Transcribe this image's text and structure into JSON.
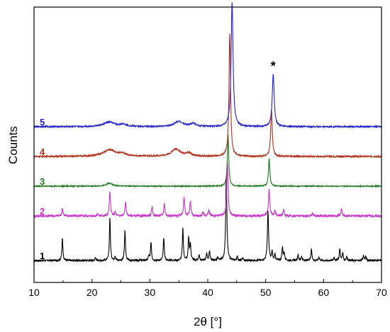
{
  "chart_data": {
    "type": "line",
    "xlabel": "2θ [°]",
    "ylabel": "Counts",
    "xlim": [
      10,
      70
    ],
    "xticks": [
      "10",
      "20",
      "30",
      "40",
      "50",
      "60",
      "70"
    ],
    "grid": false,
    "legend": "inline labels at left of each curve",
    "annotations": [
      {
        "text": "*",
        "x": 44.2
      },
      {
        "text": "*",
        "x": 51.3
      }
    ],
    "series": [
      {
        "name": "1",
        "color": "#000000",
        "baseline": 0.0,
        "noise": 0.12,
        "peaks": [
          {
            "x": 14.9,
            "h": 3.0,
            "w": 0.1
          },
          {
            "x": 20.6,
            "h": 0.4,
            "w": 0.1
          },
          {
            "x": 23.1,
            "h": 5.9,
            "w": 0.1
          },
          {
            "x": 24.0,
            "h": 0.6,
            "w": 0.1
          },
          {
            "x": 25.7,
            "h": 4.0,
            "w": 0.1
          },
          {
            "x": 29.8,
            "h": 0.6,
            "w": 0.1
          },
          {
            "x": 30.2,
            "h": 2.5,
            "w": 0.1
          },
          {
            "x": 32.4,
            "h": 3.1,
            "w": 0.1
          },
          {
            "x": 35.7,
            "h": 4.4,
            "w": 0.1
          },
          {
            "x": 36.7,
            "h": 3.1,
            "w": 0.1
          },
          {
            "x": 37.0,
            "h": 2.2,
            "w": 0.1
          },
          {
            "x": 38.5,
            "h": 0.8,
            "w": 0.1
          },
          {
            "x": 39.8,
            "h": 1.0,
            "w": 0.1
          },
          {
            "x": 40.3,
            "h": 1.3,
            "w": 0.1
          },
          {
            "x": 41.7,
            "h": 0.4,
            "w": 0.1
          },
          {
            "x": 43.2,
            "h": 11.3,
            "w": 0.12
          },
          {
            "x": 45.1,
            "h": 0.5,
            "w": 0.1
          },
          {
            "x": 46.0,
            "h": 0.3,
            "w": 0.1
          },
          {
            "x": 50.4,
            "h": 6.7,
            "w": 0.12
          },
          {
            "x": 51.1,
            "h": 1.2,
            "w": 0.1
          },
          {
            "x": 51.6,
            "h": 0.8,
            "w": 0.1
          },
          {
            "x": 52.9,
            "h": 1.8,
            "w": 0.1
          },
          {
            "x": 53.2,
            "h": 1.0,
            "w": 0.1
          },
          {
            "x": 55.6,
            "h": 0.7,
            "w": 0.1
          },
          {
            "x": 56.2,
            "h": 0.6,
            "w": 0.1
          },
          {
            "x": 57.9,
            "h": 1.6,
            "w": 0.1
          },
          {
            "x": 59.2,
            "h": 0.5,
            "w": 0.1
          },
          {
            "x": 61.8,
            "h": 0.4,
            "w": 0.1
          },
          {
            "x": 62.8,
            "h": 1.6,
            "w": 0.1
          },
          {
            "x": 63.3,
            "h": 1.0,
            "w": 0.1
          },
          {
            "x": 64.0,
            "h": 0.5,
            "w": 0.1
          },
          {
            "x": 66.9,
            "h": 0.7,
            "w": 0.1
          },
          {
            "x": 67.3,
            "h": 0.5,
            "w": 0.1
          }
        ]
      },
      {
        "name": "2",
        "color": "#cc33cc",
        "baseline": 6.0,
        "noise": 0.15,
        "peaks": [
          {
            "x": 14.9,
            "h": 1.0,
            "w": 0.12
          },
          {
            "x": 21.0,
            "h": 0.3,
            "w": 0.12
          },
          {
            "x": 23.1,
            "h": 3.2,
            "w": 0.12
          },
          {
            "x": 24.0,
            "h": 0.5,
            "w": 0.12
          },
          {
            "x": 25.8,
            "h": 1.8,
            "w": 0.12
          },
          {
            "x": 30.4,
            "h": 1.2,
            "w": 0.12
          },
          {
            "x": 32.5,
            "h": 1.7,
            "w": 0.12
          },
          {
            "x": 35.9,
            "h": 2.6,
            "w": 0.12
          },
          {
            "x": 37.0,
            "h": 2.0,
            "w": 0.12
          },
          {
            "x": 39.2,
            "h": 0.5,
            "w": 0.12
          },
          {
            "x": 40.2,
            "h": 0.8,
            "w": 0.12
          },
          {
            "x": 43.4,
            "h": 7.3,
            "w": 0.13
          },
          {
            "x": 50.6,
            "h": 3.6,
            "w": 0.13
          },
          {
            "x": 51.6,
            "h": 0.7,
            "w": 0.12
          },
          {
            "x": 53.1,
            "h": 0.9,
            "w": 0.12
          },
          {
            "x": 58.1,
            "h": 0.4,
            "w": 0.12
          },
          {
            "x": 63.1,
            "h": 1.0,
            "w": 0.12
          }
        ]
      },
      {
        "name": "3",
        "color": "#1e7a1e",
        "baseline": 10.0,
        "noise": 0.07,
        "peaks": [
          {
            "x": 23.0,
            "h": 0.4,
            "w": 0.6
          },
          {
            "x": 43.5,
            "h": 7.0,
            "w": 0.14
          },
          {
            "x": 50.6,
            "h": 3.7,
            "w": 0.14
          }
        ]
      },
      {
        "name": "4",
        "color": "#b3311a",
        "baseline": 14.0,
        "noise": 0.1,
        "peaks": [
          {
            "x": 23.0,
            "h": 0.9,
            "w": 1.2
          },
          {
            "x": 25.3,
            "h": 0.3,
            "w": 0.8
          },
          {
            "x": 34.5,
            "h": 1.0,
            "w": 0.9
          },
          {
            "x": 36.7,
            "h": 0.4,
            "w": 0.6
          },
          {
            "x": 43.8,
            "h": 16.5,
            "w": 0.16
          },
          {
            "x": 51.0,
            "h": 6.3,
            "w": 0.16
          }
        ]
      },
      {
        "name": "5",
        "color": "#2424cc",
        "baseline": 18.0,
        "noise": 0.1,
        "peaks": [
          {
            "x": 23.0,
            "h": 0.6,
            "w": 1.2
          },
          {
            "x": 25.5,
            "h": 0.3,
            "w": 0.6
          },
          {
            "x": 35.0,
            "h": 0.7,
            "w": 0.9
          },
          {
            "x": 37.5,
            "h": 0.4,
            "w": 0.6
          },
          {
            "x": 44.2,
            "h": 16.8,
            "w": 0.2
          },
          {
            "x": 51.3,
            "h": 7.0,
            "w": 0.2
          }
        ]
      }
    ]
  }
}
